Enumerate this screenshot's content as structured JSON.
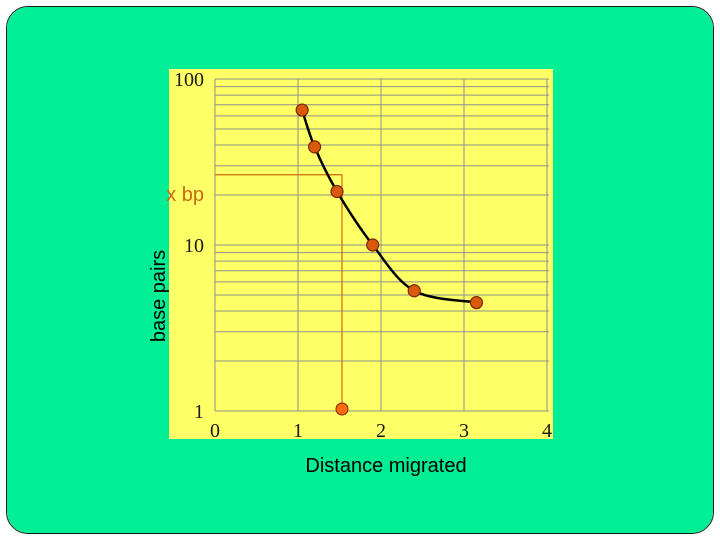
{
  "colors": {
    "slide_background": "#00ee94",
    "plot_background": "#ffff66",
    "grid": "#8f8f8f",
    "curve": "#000000",
    "point_fill": "#d85a0a",
    "point_stroke": "#7a2600",
    "guide_line": "#c86a14",
    "reference_point": "#ff6a0a"
  },
  "chart_data": {
    "type": "line",
    "xlabel": "Distance migrated",
    "ylabel": "base pairs",
    "y_scale": "log",
    "xlim": [
      0,
      4
    ],
    "ylim": [
      1,
      100
    ],
    "x_ticks": [
      "0",
      "1",
      "2",
      "3",
      "4"
    ],
    "y_ticks": [
      "1",
      "10",
      "100"
    ],
    "series": [
      {
        "x": [
          1.05,
          1.2,
          1.47,
          1.9,
          2.4,
          3.15
        ],
        "y": [
          65,
          39,
          21,
          10,
          5.3,
          4.5
        ]
      }
    ],
    "annotation": {
      "label": "x bp",
      "x": 1.53,
      "y": 26.5,
      "marker_on_x_axis": 1.53
    },
    "grid": true
  }
}
